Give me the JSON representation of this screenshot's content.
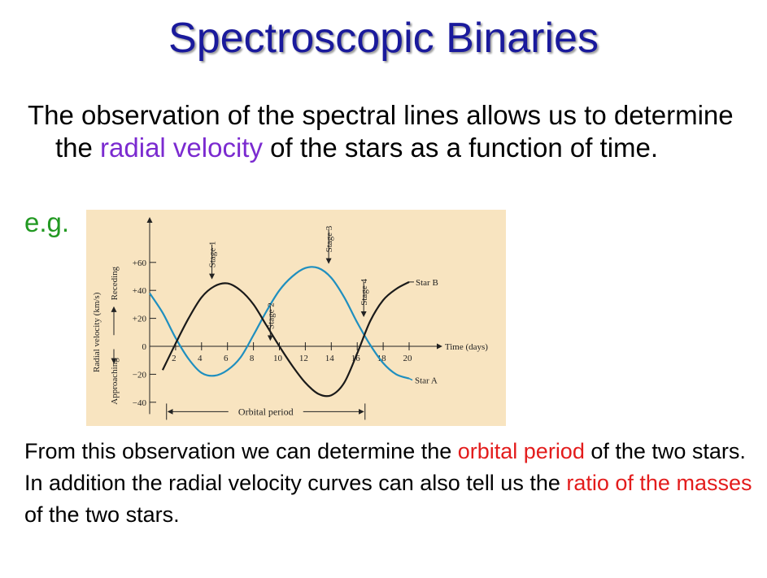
{
  "title": "Spectroscopic Binaries",
  "intro": {
    "before": "The observation of the spectral lines allows us to determine the ",
    "highlight": "radial velocity",
    "after": " of the stars as a function of time."
  },
  "eg_label": "e.g.",
  "outro": {
    "line1_before": "From this observation we can determine the ",
    "line1_highlight": "orbital period",
    "line1_after": " of the two stars.",
    "line2_before": "In addition the radial velocity curves can also tell us the ",
    "line2_highlight": "ratio of the masses",
    "line2_after": " of the two stars."
  },
  "colors": {
    "title": "#1a1a9c",
    "highlight_purple": "#7b2bd0",
    "highlight_red": "#e31c1c",
    "eg_green": "#229922",
    "chart_bg": "#f8e4c0",
    "star_a": "#1f8fbf",
    "star_b": "#1a1a1a"
  },
  "chart_data": {
    "type": "line",
    "ylabel_main": "Radial velocity (km/s)",
    "ylabel_approaching": "Approaching",
    "ylabel_receding": "Receding",
    "xlabel": "Time (days)",
    "xlim": [
      0,
      22
    ],
    "ylim": [
      -45,
      80
    ],
    "x_ticks": [
      2,
      4,
      6,
      8,
      10,
      12,
      14,
      16,
      18,
      20
    ],
    "x_tick_labels": [
      "2",
      "4",
      "6",
      "8",
      "10",
      "12",
      "14",
      "16",
      "18",
      "20"
    ],
    "y_ticks": [
      -40,
      -20,
      0,
      20,
      40,
      60
    ],
    "y_tick_labels": [
      "−40",
      "−20",
      "0",
      "+20",
      "+40",
      "+60"
    ],
    "series": [
      {
        "name": "Star A",
        "x": [
          0,
          1,
          2,
          3,
          4,
          5,
          6,
          7,
          8,
          9,
          10,
          11,
          12,
          13,
          14,
          15,
          16,
          17,
          18,
          19,
          20
        ],
        "values": [
          38,
          24,
          6,
          -9,
          -19,
          -21,
          -17,
          -8,
          8,
          25,
          40,
          50,
          56,
          56,
          49,
          35,
          17,
          1,
          -12,
          -20,
          -23
        ]
      },
      {
        "name": "Star B",
        "x": [
          1,
          2,
          3,
          4,
          5,
          6,
          7,
          8,
          9,
          10,
          11,
          12,
          13,
          14,
          15,
          16,
          17,
          18,
          19,
          20
        ],
        "values": [
          -17,
          2,
          20,
          35,
          43,
          45,
          40,
          30,
          15,
          0,
          -14,
          -26,
          -34,
          -35,
          -26,
          -5,
          18,
          33,
          41,
          46
        ]
      }
    ],
    "annotations": [
      {
        "label": "Stage 1",
        "x": 4.8
      },
      {
        "label": "Stage 2",
        "x": 9.3
      },
      {
        "label": "Stage 3",
        "x": 13.8
      },
      {
        "label": "Stage 4",
        "x": 16.5
      }
    ],
    "period": {
      "label": "Orbital period",
      "x_start": 1.3,
      "x_end": 16.6
    }
  }
}
